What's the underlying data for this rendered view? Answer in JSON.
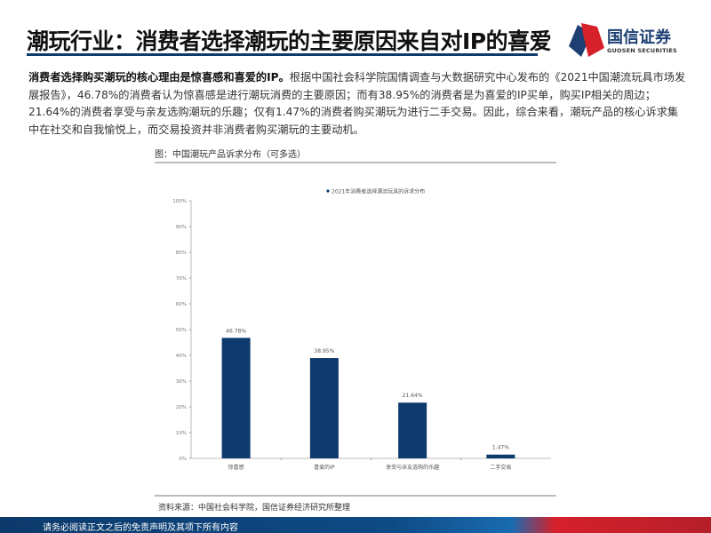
{
  "header": {
    "title": "潮玩行业：消费者选择潮玩的主要原因来自对IP的喜爱",
    "logo": {
      "cn": "国信证券",
      "en": "GUOSEN SECURITIES",
      "colors": {
        "blue": "#1d3f72",
        "red": "#d6202a"
      }
    }
  },
  "body": {
    "bold_lead": "消费者选择购买潮玩的核心理由是惊喜感和喜爱的IP。",
    "text": "根据中国社会科学院国情调查与大数据研究中心发布的《2021中国潮流玩具市场发展报告》，46.78%的消费者认为惊喜感是进行潮玩消费的主要原因；而有38.95%的消费者是为喜爱的IP买单，购买IP相关的周边；21.64%的消费者享受与亲友选购潮玩的乐趣；仅有1.47%的消费者购买潮玩为进行二手交易。因此，综合来看，潮玩产品的核心诉求集中在社交和自我愉悦上，而交易投资并非消费者购买潮玩的主要动机。"
  },
  "figure": {
    "caption": "图：中国潮玩产品诉求分布（可多选）",
    "source": "资料来源：中国社会科学院，国信证券经济研究所整理"
  },
  "chart_data": {
    "type": "bar",
    "legend": "2021年消费者选择潮流玩具的诉求分布",
    "legend_position": "top",
    "categories": [
      "惊喜感",
      "喜爱的IP",
      "享受与亲友选购的乐趣",
      "二手交易"
    ],
    "values": [
      46.78,
      38.95,
      21.64,
      1.47
    ],
    "data_labels": [
      "46.78%",
      "38.95%",
      "21.64%",
      "1.47%"
    ],
    "ylim": [
      0,
      100
    ],
    "yticks": [
      "0%",
      "10%",
      "20%",
      "30%",
      "40%",
      "50%",
      "60%",
      "70%",
      "80%",
      "90%",
      "100%"
    ],
    "grid": false,
    "bar_color": "#0e3a6e"
  },
  "footer": {
    "text": "请务必阅读正文之后的免责声明及其项下所有内容"
  }
}
